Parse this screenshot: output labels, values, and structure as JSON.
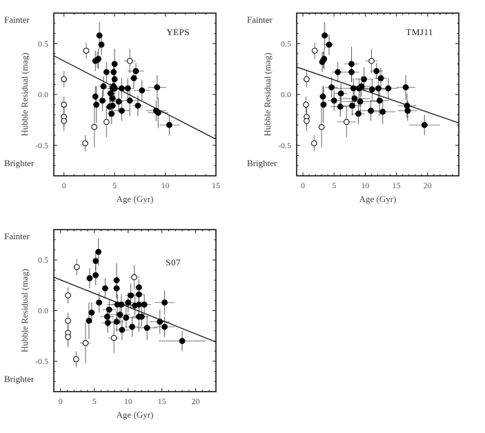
{
  "chart_data": [
    {
      "type": "scatter",
      "title": "YEPS",
      "xlabel": "Age (Gyr)",
      "ylabel": "Hubble Residual (mag)",
      "side_labels": {
        "top": "Fainter",
        "bottom": "Brighter"
      },
      "xlim": [
        -1,
        15
      ],
      "ylim": [
        -0.8,
        0.8
      ],
      "xticks": [
        0,
        5,
        10,
        15
      ],
      "yticks": [
        0.5,
        0.0,
        -0.5
      ],
      "ytick_labels": [
        "0.5",
        "0.0",
        "-0.5"
      ],
      "fit_line": {
        "x": [
          -1,
          15
        ],
        "y": [
          0.38,
          -0.44
        ]
      },
      "series": [
        {
          "name": "filled",
          "marker": "filled-circle",
          "points": [
            [
              3.5,
              0.58,
              0.13,
              0.3
            ],
            [
              3.7,
              0.49,
              0.1,
              0.3
            ],
            [
              3.1,
              0.33,
              0.1,
              0.3
            ],
            [
              3.3,
              0.34,
              0.08,
              0.3
            ],
            [
              3.4,
              0.35,
              0.1,
              0.3
            ],
            [
              4.2,
              0.22,
              0.1,
              0.3
            ],
            [
              4.9,
              0.22,
              0.1,
              0.3
            ],
            [
              5.0,
              0.3,
              0.15,
              0.3
            ],
            [
              5.0,
              0.15,
              0.1,
              0.3
            ],
            [
              3.9,
              0.08,
              0.1,
              0.4
            ],
            [
              4.9,
              0.08,
              0.1,
              0.5
            ],
            [
              4.8,
              0.06,
              0.1,
              0.6
            ],
            [
              5.0,
              0.06,
              0.1,
              0.6
            ],
            [
              5.7,
              0.06,
              0.1,
              0.8
            ],
            [
              6.3,
              0.06,
              0.1,
              0.6
            ],
            [
              6.9,
              0.16,
              0.1,
              0.4
            ],
            [
              7.1,
              0.23,
              0.08,
              0.8
            ],
            [
              7.7,
              0.04,
              0.1,
              0.8
            ],
            [
              9.2,
              0.07,
              0.12,
              0.9
            ],
            [
              3.1,
              -0.02,
              0.1,
              0.3
            ],
            [
              4.6,
              0.01,
              0.1,
              0.4
            ],
            [
              3.2,
              -0.1,
              0.18,
              0.3
            ],
            [
              3.8,
              -0.06,
              0.1,
              0.4
            ],
            [
              4.8,
              -0.04,
              0.1,
              0.4
            ],
            [
              5.4,
              -0.07,
              0.1,
              0.5
            ],
            [
              6.5,
              -0.06,
              0.15,
              0.9
            ],
            [
              7.3,
              -0.11,
              0.1,
              0.5
            ],
            [
              4.5,
              -0.12,
              0.1,
              0.4
            ],
            [
              4.8,
              -0.11,
              0.1,
              0.4
            ],
            [
              4.7,
              -0.19,
              0.1,
              0.3
            ],
            [
              5.7,
              -0.16,
              0.1,
              0.8
            ],
            [
              9.1,
              -0.16,
              0.1,
              1.0
            ],
            [
              9.3,
              -0.18,
              0.15,
              1.0
            ],
            [
              10.4,
              -0.3,
              0.1,
              1.0
            ]
          ]
        },
        {
          "name": "open",
          "marker": "open-circle",
          "points": [
            [
              2.2,
              0.43,
              0.08,
              0.1
            ],
            [
              0.0,
              0.15,
              0.08,
              0.1
            ],
            [
              0.0,
              -0.1,
              0.08,
              0.1
            ],
            [
              0.0,
              -0.22,
              0.1,
              0.1
            ],
            [
              0.0,
              -0.26,
              0.1,
              0.1
            ],
            [
              2.1,
              -0.48,
              0.08,
              0.1
            ],
            [
              3.0,
              -0.32,
              0.2,
              0.3
            ],
            [
              4.2,
              -0.27,
              0.15,
              0.3
            ],
            [
              6.5,
              0.33,
              0.12,
              0.6
            ]
          ]
        }
      ]
    },
    {
      "type": "scatter",
      "title": "TMJ11",
      "xlabel": "Age (Gyr)",
      "ylabel": "Hubble Residual (mag)",
      "side_labels": {
        "top": "Fainter",
        "bottom": "Brighter"
      },
      "xlim": [
        -1,
        25
      ],
      "ylim": [
        -0.8,
        0.8
      ],
      "xticks": [
        0,
        5,
        10,
        15,
        20
      ],
      "yticks": [
        0.5,
        0.0,
        -0.5
      ],
      "ytick_labels": [
        "0.5",
        "0.0",
        "-0.5"
      ],
      "fit_line": {
        "x": [
          -1,
          25
        ],
        "y": [
          0.27,
          -0.28
        ]
      },
      "series": [
        {
          "name": "filled",
          "marker": "filled-circle",
          "points": [
            [
              3.5,
              0.58,
              0.13,
              0.5
            ],
            [
              4.2,
              0.49,
              0.1,
              0.8
            ],
            [
              3.1,
              0.32,
              0.1,
              0.5
            ],
            [
              3.3,
              0.34,
              0.08,
              0.5
            ],
            [
              3.4,
              0.35,
              0.1,
              0.5
            ],
            [
              5.6,
              0.22,
              0.1,
              1.0
            ],
            [
              7.8,
              0.3,
              0.17,
              1.2
            ],
            [
              7.8,
              0.22,
              0.1,
              1.2
            ],
            [
              9.8,
              0.15,
              0.12,
              1.5
            ],
            [
              11.8,
              0.23,
              0.08,
              1.0
            ],
            [
              12.5,
              0.16,
              0.1,
              1.0
            ],
            [
              4.6,
              0.07,
              0.1,
              1.0
            ],
            [
              8.1,
              0.06,
              0.1,
              3.0
            ],
            [
              9.0,
              0.06,
              0.1,
              1.5
            ],
            [
              9.4,
              0.08,
              0.1,
              1.5
            ],
            [
              11.1,
              0.05,
              0.1,
              3.0
            ],
            [
              12.1,
              0.06,
              0.1,
              1.5
            ],
            [
              13.7,
              0.06,
              0.1,
              1.5
            ],
            [
              16.5,
              0.07,
              0.12,
              1.5
            ],
            [
              3.2,
              -0.02,
              0.1,
              0.5
            ],
            [
              6.1,
              0.01,
              0.1,
              1.0
            ],
            [
              3.3,
              -0.1,
              0.18,
              0.5
            ],
            [
              5.0,
              -0.06,
              0.1,
              1.0
            ],
            [
              8.3,
              -0.04,
              0.1,
              2.5
            ],
            [
              9.2,
              -0.07,
              0.1,
              3.0
            ],
            [
              12.3,
              -0.06,
              0.15,
              1.5
            ],
            [
              6.0,
              -0.12,
              0.1,
              1.5
            ],
            [
              7.9,
              -0.11,
              0.1,
              1.5
            ],
            [
              10.9,
              -0.16,
              0.1,
              2.0
            ],
            [
              12.8,
              -0.17,
              0.12,
              2.0
            ],
            [
              8.9,
              -0.19,
              0.1,
              1.0
            ],
            [
              16.7,
              -0.11,
              0.12,
              1.5
            ],
            [
              16.8,
              -0.16,
              0.1,
              1.5
            ],
            [
              19.5,
              -0.3,
              0.1,
              2.5
            ]
          ]
        },
        {
          "name": "open",
          "marker": "open-circle",
          "points": [
            [
              1.9,
              0.43,
              0.08,
              0.3
            ],
            [
              0.6,
              0.15,
              0.08,
              0.3
            ],
            [
              0.5,
              -0.1,
              0.08,
              0.3
            ],
            [
              0.6,
              -0.22,
              0.1,
              0.3
            ],
            [
              0.6,
              -0.26,
              0.1,
              0.3
            ],
            [
              1.8,
              -0.48,
              0.08,
              0.3
            ],
            [
              3.0,
              -0.32,
              0.2,
              0.5
            ],
            [
              7.0,
              -0.27,
              0.15,
              1.5
            ],
            [
              11.0,
              0.33,
              0.12,
              1.0
            ]
          ]
        }
      ]
    },
    {
      "type": "scatter",
      "title": "S07",
      "xlabel": "Age (Gyr)",
      "ylabel": "Hubble Residual (mag)",
      "side_labels": {
        "top": "Fainter",
        "bottom": "Brighter"
      },
      "xlim": [
        -1,
        23
      ],
      "ylim": [
        -0.8,
        0.8
      ],
      "xticks": [
        0,
        5,
        10,
        15,
        20
      ],
      "yticks": [
        0.5,
        0.0,
        -0.5
      ],
      "ytick_labels": [
        "0.5",
        "0.0",
        "-0.5"
      ],
      "fit_line": {
        "x": [
          -1,
          23
        ],
        "y": [
          0.33,
          -0.31
        ]
      },
      "series": [
        {
          "name": "filled",
          "marker": "filled-circle",
          "points": [
            [
              5.6,
              0.58,
              0.13,
              0.3
            ],
            [
              5.2,
              0.49,
              0.1,
              0.3
            ],
            [
              5.2,
              0.35,
              0.1,
              0.3
            ],
            [
              4.3,
              0.32,
              0.1,
              0.3
            ],
            [
              6.6,
              0.22,
              0.1,
              0.5
            ],
            [
              8.3,
              0.3,
              0.17,
              0.5
            ],
            [
              8.3,
              0.22,
              0.1,
              0.5
            ],
            [
              10.4,
              0.15,
              0.12,
              0.8
            ],
            [
              11.6,
              0.23,
              0.08,
              0.5
            ],
            [
              11.6,
              0.16,
              0.1,
              0.8
            ],
            [
              5.7,
              0.08,
              0.1,
              0.5
            ],
            [
              8.4,
              0.06,
              0.1,
              1.5
            ],
            [
              9.0,
              0.06,
              0.1,
              1.5
            ],
            [
              10.0,
              0.08,
              0.1,
              0.8
            ],
            [
              11.0,
              0.05,
              0.1,
              1.5
            ],
            [
              11.6,
              0.06,
              0.1,
              1.0
            ],
            [
              12.4,
              0.06,
              0.1,
              1.0
            ],
            [
              15.4,
              0.08,
              0.12,
              1.5
            ],
            [
              7.2,
              0.01,
              0.1,
              1.0
            ],
            [
              4.6,
              -0.02,
              0.1,
              0.5
            ],
            [
              6.9,
              -0.06,
              0.1,
              1.0
            ],
            [
              8.8,
              -0.04,
              0.1,
              1.5
            ],
            [
              9.7,
              -0.07,
              0.1,
              1.5
            ],
            [
              11.6,
              -0.06,
              0.15,
              1.0
            ],
            [
              12.0,
              -0.06,
              0.1,
              1.0
            ],
            [
              4.2,
              -0.1,
              0.18,
              0.5
            ],
            [
              7.0,
              -0.12,
              0.1,
              1.0
            ],
            [
              8.3,
              -0.11,
              0.1,
              1.0
            ],
            [
              10.6,
              -0.16,
              0.1,
              1.0
            ],
            [
              12.8,
              -0.17,
              0.12,
              1.5
            ],
            [
              9.1,
              -0.19,
              0.1,
              1.0
            ],
            [
              14.7,
              -0.11,
              0.12,
              1.5
            ],
            [
              15.4,
              -0.16,
              0.1,
              1.5
            ],
            [
              18.0,
              -0.3,
              0.1,
              3.5
            ]
          ]
        },
        {
          "name": "open",
          "marker": "open-circle",
          "points": [
            [
              2.4,
              0.43,
              0.08,
              0.3
            ],
            [
              1.1,
              0.15,
              0.08,
              0.3
            ],
            [
              1.1,
              -0.1,
              0.08,
              0.3
            ],
            [
              1.1,
              -0.22,
              0.1,
              0.3
            ],
            [
              1.1,
              -0.26,
              0.1,
              0.3
            ],
            [
              2.3,
              -0.48,
              0.08,
              0.3
            ],
            [
              3.7,
              -0.32,
              0.2,
              0.8
            ],
            [
              7.9,
              -0.27,
              0.15,
              0.8
            ],
            [
              10.9,
              0.33,
              0.12,
              0.8
            ]
          ]
        }
      ]
    }
  ]
}
